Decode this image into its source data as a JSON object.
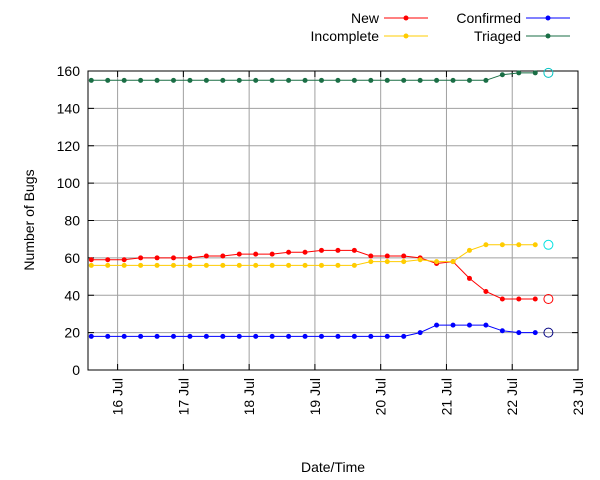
{
  "chart_data": {
    "type": "line",
    "title": "",
    "xlabel": "Date/Time",
    "ylabel": "Number of Bugs",
    "ylim": [
      0,
      160
    ],
    "xlim": [
      15.55,
      23.0
    ],
    "grid": true,
    "yticks": [
      0,
      20,
      40,
      60,
      80,
      100,
      120,
      140,
      160
    ],
    "xticks": [
      {
        "value": 16,
        "label": "16 Jul"
      },
      {
        "value": 17,
        "label": "17 Jul"
      },
      {
        "value": 18,
        "label": "18 Jul"
      },
      {
        "value": 19,
        "label": "19 Jul"
      },
      {
        "value": 20,
        "label": "20 Jul"
      },
      {
        "value": 21,
        "label": "21 Jul"
      },
      {
        "value": 22,
        "label": "22 Jul"
      },
      {
        "value": 23,
        "label": "23 Jul"
      }
    ],
    "legend_position": "top-right",
    "x": [
      15.6,
      15.85,
      16.1,
      16.35,
      16.6,
      16.85,
      17.1,
      17.35,
      17.6,
      17.85,
      18.1,
      18.35,
      18.6,
      18.85,
      19.1,
      19.35,
      19.6,
      19.85,
      20.1,
      20.35,
      20.6,
      20.85,
      21.1,
      21.35,
      21.6,
      21.85,
      22.1,
      22.35
    ],
    "current_x": 22.55,
    "series": [
      {
        "name": "New",
        "color": "#ff0000",
        "current_color": "#ff0000",
        "values": [
          59,
          59,
          59,
          60,
          60,
          60,
          60,
          61,
          61,
          62,
          62,
          62,
          63,
          63,
          64,
          64,
          64,
          61,
          61,
          61,
          60,
          57,
          58,
          49,
          42,
          38,
          38,
          38
        ],
        "current": 38
      },
      {
        "name": "Incomplete",
        "color": "#ffcc00",
        "current_color": "#00e0e0",
        "values": [
          56,
          56,
          56,
          56,
          56,
          56,
          56,
          56,
          56,
          56,
          56,
          56,
          56,
          56,
          56,
          56,
          56,
          58,
          58,
          58,
          59,
          58,
          58,
          64,
          67,
          67,
          67,
          67
        ],
        "current": 67
      },
      {
        "name": "Confirmed",
        "color": "#0000ff",
        "current_color": "#000080",
        "values": [
          18,
          18,
          18,
          18,
          18,
          18,
          18,
          18,
          18,
          18,
          18,
          18,
          18,
          18,
          18,
          18,
          18,
          18,
          18,
          18,
          20,
          24,
          24,
          24,
          24,
          21,
          20,
          20
        ],
        "current": 20
      },
      {
        "name": "Triaged",
        "color": "#1a6e45",
        "current_color": "#00c0c0",
        "values": [
          155,
          155,
          155,
          155,
          155,
          155,
          155,
          155,
          155,
          155,
          155,
          155,
          155,
          155,
          155,
          155,
          155,
          155,
          155,
          155,
          155,
          155,
          155,
          155,
          155,
          158,
          159,
          159
        ],
        "current": 159
      }
    ]
  }
}
